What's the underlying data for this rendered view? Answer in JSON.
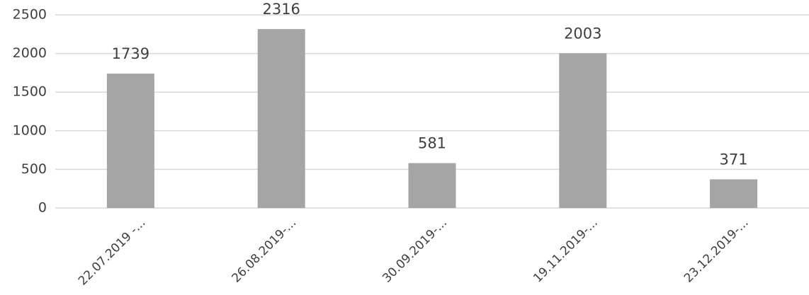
{
  "chart_data": {
    "type": "bar",
    "categories": [
      "22.07.2019 -...",
      "26.08.2019-...",
      "30.09.2019-...",
      "19.11.2019-...",
      "23.12.2019-..."
    ],
    "values": [
      1739,
      2316,
      581,
      2003,
      371
    ],
    "color": "#a5a5a5",
    "ylim": [
      0,
      2500
    ],
    "yticks": [
      0,
      500,
      1000,
      1500,
      2000,
      2500
    ],
    "grid": true
  }
}
